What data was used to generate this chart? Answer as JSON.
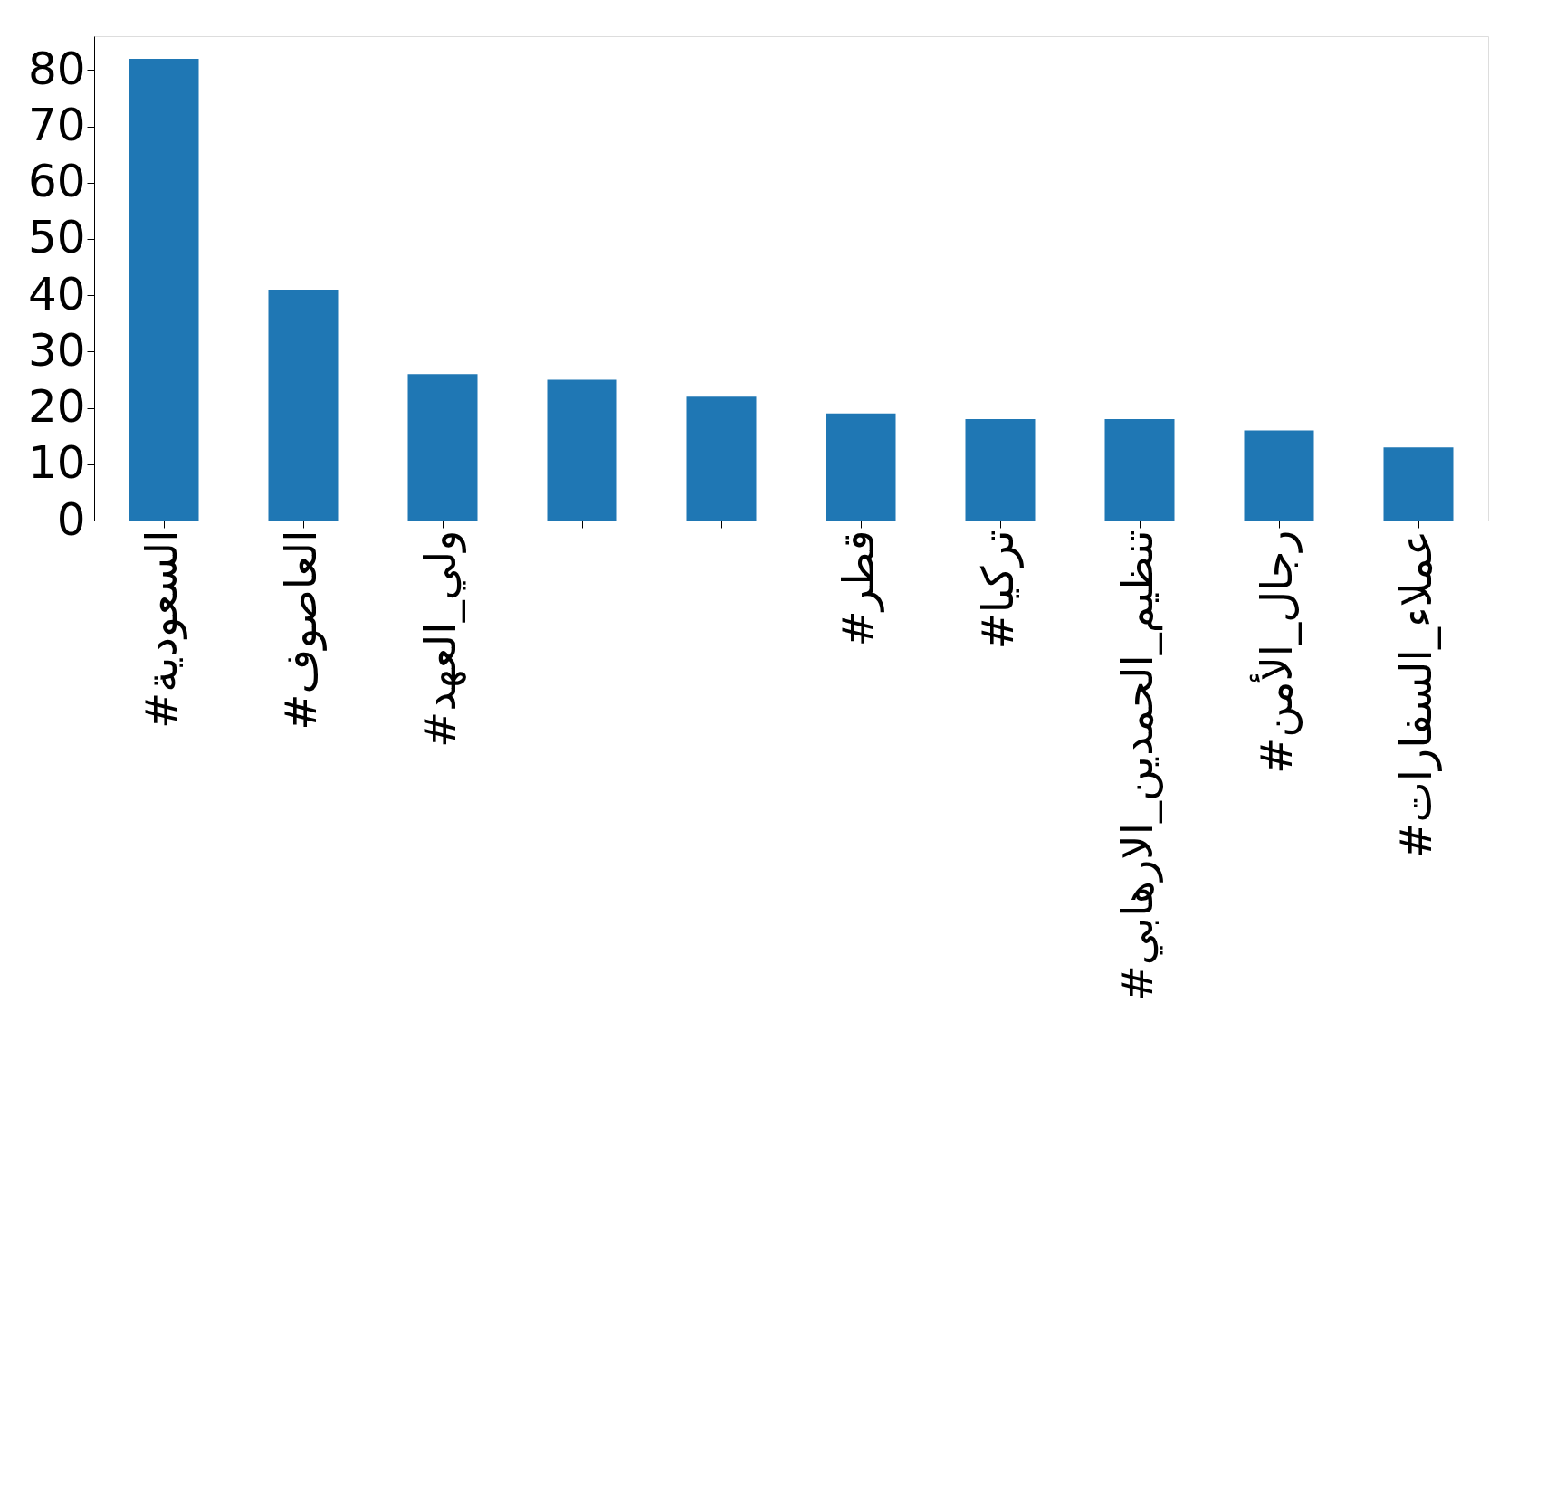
{
  "chart_data": {
    "type": "bar",
    "categories": [
      "#السعودية",
      "#العاصوف",
      "#ولي_العهد",
      null,
      null,
      "#قطر",
      "#تركيا",
      "#تنظيم_الحمدين_الارهابي",
      "#رجال_الأمن",
      "#عملاء_السفارات"
    ],
    "values": [
      82,
      41,
      26,
      25,
      22,
      19,
      18,
      18,
      16,
      13
    ],
    "color": "#1f77b4",
    "ylim": [
      0,
      86
    ],
    "yticks": [
      0,
      10,
      20,
      30,
      40,
      50,
      60,
      70,
      80
    ],
    "grid": false
  }
}
